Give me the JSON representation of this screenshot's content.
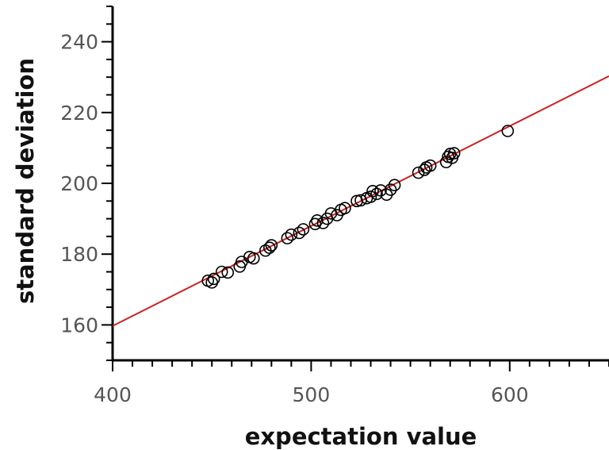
{
  "chart_data": {
    "type": "scatter",
    "title": "",
    "xlabel": "expectation value",
    "ylabel": "standard deviation",
    "xlim": [
      400,
      650
    ],
    "ylim": [
      150,
      250
    ],
    "x_ticks": [
      400,
      500,
      600
    ],
    "y_ticks": [
      160,
      180,
      200,
      220,
      240
    ],
    "x_tick_labels": [
      "400",
      "500",
      "600"
    ],
    "y_tick_labels": [
      "160",
      "180",
      "200",
      "220",
      "240"
    ],
    "grid": false,
    "legend": "none",
    "series": [
      {
        "kind": "points",
        "marker": "open-circle",
        "color": "#000000",
        "points": [
          [
            448,
            172.5
          ],
          [
            450,
            172
          ],
          [
            451,
            173
          ],
          [
            455,
            175
          ],
          [
            458,
            174.8
          ],
          [
            464,
            176.5
          ],
          [
            465,
            177.8
          ],
          [
            469,
            179.2
          ],
          [
            471,
            178.8
          ],
          [
            477,
            181
          ],
          [
            479,
            181.8
          ],
          [
            480,
            182.5
          ],
          [
            488,
            184.5
          ],
          [
            490,
            185.5
          ],
          [
            494,
            186
          ],
          [
            496,
            187
          ],
          [
            502,
            188.5
          ],
          [
            503,
            189.5
          ],
          [
            506,
            188.8
          ],
          [
            508,
            190
          ],
          [
            510,
            191.5
          ],
          [
            513,
            191
          ],
          [
            515,
            192.5
          ],
          [
            517,
            193
          ],
          [
            523,
            195
          ],
          [
            525,
            195.2
          ],
          [
            528,
            195.8
          ],
          [
            530,
            196.2
          ],
          [
            531,
            197.8
          ],
          [
            533,
            197
          ],
          [
            535,
            198
          ],
          [
            538,
            196.8
          ],
          [
            540,
            198.2
          ],
          [
            542,
            199.5
          ],
          [
            554,
            203
          ],
          [
            557,
            203.8
          ],
          [
            558,
            204.5
          ],
          [
            560,
            205
          ],
          [
            568,
            206
          ],
          [
            569,
            207.5
          ],
          [
            570,
            208.3
          ],
          [
            571,
            207.2
          ],
          [
            572,
            208.5
          ],
          [
            599,
            214.8
          ]
        ]
      },
      {
        "kind": "fit-line",
        "color": "#cc2222",
        "points": [
          [
            400,
            159.7
          ],
          [
            650,
            230.3
          ]
        ]
      }
    ]
  }
}
